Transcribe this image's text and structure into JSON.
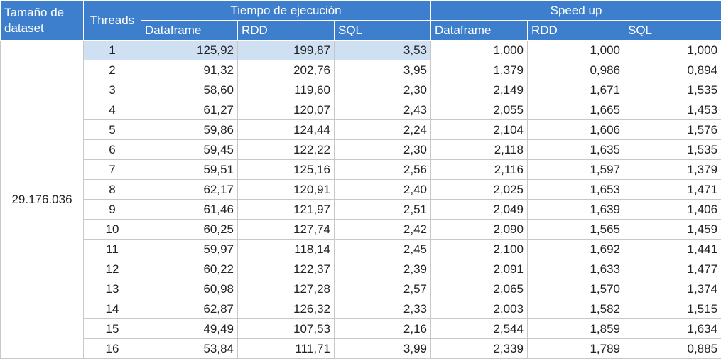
{
  "headers": {
    "dataset_size": "Tamaño de dataset",
    "threads": "Threads",
    "exec_time_group": "Tiempo de ejecución",
    "speedup_group": "Speed up",
    "sub": [
      "Dataframe",
      "RDD",
      "SQL",
      "Dataframe",
      "RDD",
      "SQL"
    ]
  },
  "dataset_size_value": "29.176.036",
  "colors": {
    "header_bg": "#3d7fcc",
    "header_text": "#ffffff",
    "highlight": "#cfe0f3"
  },
  "rows": [
    {
      "threads": "1",
      "t_df": "125,92",
      "t_rdd": "199,87",
      "t_sql": "3,53",
      "s_df": "1,000",
      "s_rdd": "1,000",
      "s_sql": "1,000"
    },
    {
      "threads": "2",
      "t_df": "91,32",
      "t_rdd": "202,76",
      "t_sql": "3,95",
      "s_df": "1,379",
      "s_rdd": "0,986",
      "s_sql": "0,894"
    },
    {
      "threads": "3",
      "t_df": "58,60",
      "t_rdd": "119,60",
      "t_sql": "2,30",
      "s_df": "2,149",
      "s_rdd": "1,671",
      "s_sql": "1,535"
    },
    {
      "threads": "4",
      "t_df": "61,27",
      "t_rdd": "120,07",
      "t_sql": "2,43",
      "s_df": "2,055",
      "s_rdd": "1,665",
      "s_sql": "1,453"
    },
    {
      "threads": "5",
      "t_df": "59,86",
      "t_rdd": "124,44",
      "t_sql": "2,24",
      "s_df": "2,104",
      "s_rdd": "1,606",
      "s_sql": "1,576"
    },
    {
      "threads": "6",
      "t_df": "59,45",
      "t_rdd": "122,22",
      "t_sql": "2,30",
      "s_df": "2,118",
      "s_rdd": "1,635",
      "s_sql": "1,535"
    },
    {
      "threads": "7",
      "t_df": "59,51",
      "t_rdd": "125,16",
      "t_sql": "2,56",
      "s_df": "2,116",
      "s_rdd": "1,597",
      "s_sql": "1,379"
    },
    {
      "threads": "8",
      "t_df": "62,17",
      "t_rdd": "120,91",
      "t_sql": "2,40",
      "s_df": "2,025",
      "s_rdd": "1,653",
      "s_sql": "1,471"
    },
    {
      "threads": "9",
      "t_df": "61,46",
      "t_rdd": "121,97",
      "t_sql": "2,51",
      "s_df": "2,049",
      "s_rdd": "1,639",
      "s_sql": "1,406"
    },
    {
      "threads": "10",
      "t_df": "60,25",
      "t_rdd": "127,74",
      "t_sql": "2,42",
      "s_df": "2,090",
      "s_rdd": "1,565",
      "s_sql": "1,459"
    },
    {
      "threads": "11",
      "t_df": "59,97",
      "t_rdd": "118,14",
      "t_sql": "2,45",
      "s_df": "2,100",
      "s_rdd": "1,692",
      "s_sql": "1,441"
    },
    {
      "threads": "12",
      "t_df": "60,22",
      "t_rdd": "122,37",
      "t_sql": "2,39",
      "s_df": "2,091",
      "s_rdd": "1,633",
      "s_sql": "1,477"
    },
    {
      "threads": "13",
      "t_df": "60,98",
      "t_rdd": "127,28",
      "t_sql": "2,57",
      "s_df": "2,065",
      "s_rdd": "1,570",
      "s_sql": "1,374"
    },
    {
      "threads": "14",
      "t_df": "62,87",
      "t_rdd": "126,32",
      "t_sql": "2,33",
      "s_df": "2,003",
      "s_rdd": "1,582",
      "s_sql": "1,515"
    },
    {
      "threads": "15",
      "t_df": "49,49",
      "t_rdd": "107,53",
      "t_sql": "2,16",
      "s_df": "2,544",
      "s_rdd": "1,859",
      "s_sql": "1,634"
    },
    {
      "threads": "16",
      "t_df": "53,84",
      "t_rdd": "111,71",
      "t_sql": "3,99",
      "s_df": "2,339",
      "s_rdd": "1,789",
      "s_sql": "0,885"
    }
  ]
}
